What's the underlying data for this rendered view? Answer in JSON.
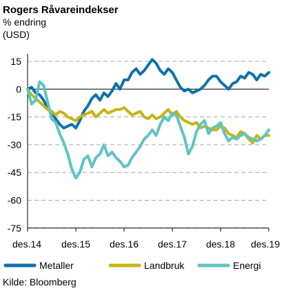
{
  "chart_data": {
    "type": "line",
    "title": "Rogers Råvareindekser",
    "subtitle_1": "% endring",
    "subtitle_2": "(USD)",
    "source": "Kilde: Bloomberg",
    "x_start": "2014-12",
    "x_end": "2019-12",
    "x_ticks": [
      "des.14",
      "des.15",
      "des.16",
      "des.17",
      "des.18",
      "des.19"
    ],
    "ylim": [
      -75,
      20
    ],
    "y_ticks": [
      15,
      0,
      -15,
      -30,
      -45,
      -60,
      -75
    ],
    "y_tick_labels": [
      "15",
      "0",
      "-15",
      "-30",
      "-45",
      "-60",
      "-75"
    ],
    "grid": "horizontal dashed",
    "legend_position": "bottom",
    "series": [
      {
        "name": "Metaller",
        "color": "#0e72ad",
        "x": [
          2014.917,
          2015.0,
          2015.083,
          2015.167,
          2015.25,
          2015.333,
          2015.417,
          2015.5,
          2015.583,
          2015.667,
          2015.75,
          2015.833,
          2015.917,
          2016.0,
          2016.083,
          2016.167,
          2016.25,
          2016.333,
          2016.417,
          2016.5,
          2016.583,
          2016.667,
          2016.75,
          2016.833,
          2016.917,
          2017.0,
          2017.083,
          2017.167,
          2017.25,
          2017.333,
          2017.417,
          2017.5,
          2017.583,
          2017.667,
          2017.75,
          2017.833,
          2017.917,
          2018.0,
          2018.083,
          2018.167,
          2018.25,
          2018.333,
          2018.417,
          2018.5,
          2018.583,
          2018.667,
          2018.75,
          2018.833,
          2018.917,
          2019.0,
          2019.083,
          2019.167,
          2019.25,
          2019.333,
          2019.417,
          2019.5,
          2019.583,
          2019.667,
          2019.75,
          2019.833,
          2019.917
        ],
        "y": [
          0,
          1,
          -2,
          -3,
          -6,
          -10,
          -13,
          -16,
          -19,
          -21,
          -20,
          -19,
          -21,
          -17,
          -12,
          -9,
          -5,
          -3,
          -6,
          -2,
          -4,
          -1,
          3,
          0,
          5,
          5,
          9,
          11,
          8,
          10,
          13,
          16,
          14,
          10,
          8,
          11,
          9,
          5,
          1,
          -1,
          0,
          -2,
          -1,
          0,
          2,
          5,
          7,
          7,
          4,
          2,
          0,
          3,
          4,
          7,
          6,
          9,
          8,
          5,
          8,
          7,
          9
        ]
      },
      {
        "name": "Landbruk",
        "color": "#c7b411",
        "x": [
          2014.917,
          2015.0,
          2015.083,
          2015.167,
          2015.25,
          2015.333,
          2015.417,
          2015.5,
          2015.583,
          2015.667,
          2015.75,
          2015.833,
          2015.917,
          2016.0,
          2016.083,
          2016.167,
          2016.25,
          2016.333,
          2016.417,
          2016.5,
          2016.583,
          2016.667,
          2016.75,
          2016.833,
          2016.917,
          2017.0,
          2017.083,
          2017.167,
          2017.25,
          2017.333,
          2017.417,
          2017.5,
          2017.583,
          2017.667,
          2017.75,
          2017.833,
          2017.917,
          2018.0,
          2018.083,
          2018.167,
          2018.25,
          2018.333,
          2018.417,
          2018.5,
          2018.583,
          2018.667,
          2018.75,
          2018.833,
          2018.917,
          2019.0,
          2019.083,
          2019.167,
          2019.25,
          2019.333,
          2019.417,
          2019.5,
          2019.583,
          2019.667,
          2019.75,
          2019.833,
          2019.917
        ],
        "y": [
          0,
          -3,
          -5,
          -7,
          -9,
          -11,
          -12,
          -14,
          -12,
          -13,
          -15,
          -16,
          -17,
          -15,
          -14,
          -13,
          -12,
          -15,
          -13,
          -11,
          -13,
          -12,
          -11,
          -11,
          -10,
          -12,
          -14,
          -13,
          -12,
          -15,
          -16,
          -14,
          -16,
          -15,
          -13,
          -11,
          -14,
          -12,
          -15,
          -17,
          -18,
          -19,
          -18,
          -21,
          -20,
          -21,
          -22,
          -22,
          -20,
          -21,
          -24,
          -25,
          -26,
          -23,
          -24,
          -27,
          -29,
          -25,
          -27,
          -25,
          -25
        ]
      },
      {
        "name": "Energi",
        "color": "#5dc4c4",
        "x": [
          2014.917,
          2015.0,
          2015.083,
          2015.167,
          2015.25,
          2015.333,
          2015.417,
          2015.5,
          2015.583,
          2015.667,
          2015.75,
          2015.833,
          2015.917,
          2016.0,
          2016.083,
          2016.167,
          2016.25,
          2016.333,
          2016.417,
          2016.5,
          2016.583,
          2016.667,
          2016.75,
          2016.833,
          2016.917,
          2017.0,
          2017.083,
          2017.167,
          2017.25,
          2017.333,
          2017.417,
          2017.5,
          2017.583,
          2017.667,
          2017.75,
          2017.833,
          2017.917,
          2018.0,
          2018.083,
          2018.167,
          2018.25,
          2018.333,
          2018.417,
          2018.5,
          2018.583,
          2018.667,
          2018.75,
          2018.833,
          2018.917,
          2019.0,
          2019.083,
          2019.167,
          2019.25,
          2019.333,
          2019.417,
          2019.5,
          2019.583,
          2019.667,
          2019.75,
          2019.833,
          2019.917
        ],
        "y": [
          0,
          -8,
          -6,
          4,
          2,
          -7,
          -16,
          -18,
          -24,
          -29,
          -35,
          -43,
          -48,
          -45,
          -38,
          -36,
          -42,
          -37,
          -35,
          -30,
          -36,
          -34,
          -37,
          -39,
          -42,
          -41,
          -37,
          -34,
          -31,
          -27,
          -25,
          -22,
          -25,
          -19,
          -15,
          -17,
          -13,
          -14,
          -20,
          -26,
          -35,
          -31,
          -23,
          -19,
          -17,
          -24,
          -21,
          -20,
          -18,
          -24,
          -28,
          -26,
          -27,
          -25,
          -24,
          -26,
          -27,
          -28,
          -27,
          -25,
          -22
        ]
      }
    ]
  }
}
